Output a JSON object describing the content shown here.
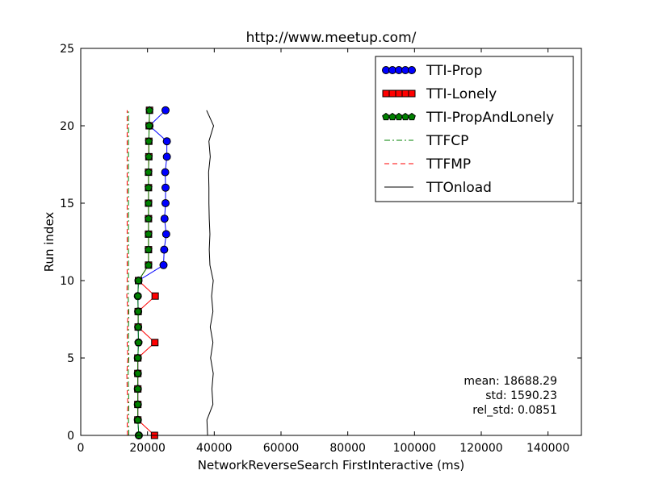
{
  "chart_data": {
    "type": "line",
    "title": "http://www.meetup.com/",
    "xlabel": "NetworkReverseSearch FirstInteractive (ms)",
    "ylabel": "Run index",
    "xlim": [
      0,
      150000
    ],
    "ylim": [
      0,
      25
    ],
    "xticks": [
      0,
      20000,
      40000,
      60000,
      80000,
      100000,
      120000,
      140000
    ],
    "yticks": [
      0,
      5,
      10,
      15,
      20,
      25
    ],
    "grid": false,
    "legend_position": "top-right",
    "series": [
      {
        "name": "TTI-Prop",
        "style": "line-markers",
        "marker": "circle",
        "color": "#0000ff",
        "points": [
          [
            17400,
            0
          ],
          [
            17100,
            1
          ],
          [
            17100,
            2
          ],
          [
            17100,
            3
          ],
          [
            17100,
            4
          ],
          [
            17100,
            5
          ],
          [
            17300,
            6
          ],
          [
            17200,
            7
          ],
          [
            17200,
            8
          ],
          [
            17100,
            9
          ],
          [
            17300,
            10
          ],
          [
            24800,
            11
          ],
          [
            25000,
            12
          ],
          [
            25600,
            13
          ],
          [
            25100,
            14
          ],
          [
            25400,
            15
          ],
          [
            25400,
            16
          ],
          [
            25300,
            17
          ],
          [
            25800,
            18
          ],
          [
            25800,
            19
          ],
          [
            20600,
            20
          ],
          [
            25400,
            21
          ]
        ]
      },
      {
        "name": "TTI-Lonely",
        "style": "line-markers",
        "marker": "square",
        "color": "#ff0000",
        "points": [
          [
            22100,
            0
          ],
          [
            17100,
            1
          ],
          [
            17100,
            2
          ],
          [
            17100,
            3
          ],
          [
            17100,
            4
          ],
          [
            17100,
            5
          ],
          [
            22200,
            6
          ],
          [
            17200,
            7
          ],
          [
            17200,
            8
          ],
          [
            22300,
            9
          ],
          [
            17300,
            10
          ],
          [
            20300,
            11
          ],
          [
            20300,
            12
          ],
          [
            20300,
            13
          ],
          [
            20300,
            14
          ],
          [
            20300,
            15
          ],
          [
            20300,
            16
          ],
          [
            20300,
            17
          ],
          [
            20400,
            18
          ],
          [
            20400,
            19
          ],
          [
            20500,
            20
          ],
          [
            20600,
            21
          ]
        ]
      },
      {
        "name": "TTI-PropAndLonely",
        "style": "line-markers",
        "marker": "pentagon",
        "color": "#008000",
        "points": [
          [
            17400,
            0
          ],
          [
            17100,
            1
          ],
          [
            17100,
            2
          ],
          [
            17100,
            3
          ],
          [
            17100,
            4
          ],
          [
            17100,
            5
          ],
          [
            17300,
            6
          ],
          [
            17200,
            7
          ],
          [
            17200,
            8
          ],
          [
            17100,
            9
          ],
          [
            17300,
            10
          ],
          [
            20300,
            11
          ],
          [
            20300,
            12
          ],
          [
            20300,
            13
          ],
          [
            20300,
            14
          ],
          [
            20300,
            15
          ],
          [
            20300,
            16
          ],
          [
            20300,
            17
          ],
          [
            20400,
            18
          ],
          [
            20400,
            19
          ],
          [
            20500,
            20
          ],
          [
            20600,
            21
          ]
        ]
      },
      {
        "name": "TTFCP",
        "style": "dash-dot",
        "color": "#008000",
        "points": [
          [
            14400,
            0
          ],
          [
            14300,
            1
          ],
          [
            14400,
            2
          ],
          [
            14300,
            3
          ],
          [
            14200,
            4
          ],
          [
            14400,
            5
          ],
          [
            14300,
            6
          ],
          [
            14300,
            7
          ],
          [
            14400,
            8
          ],
          [
            14200,
            9
          ],
          [
            14300,
            10
          ],
          [
            14300,
            11
          ],
          [
            14300,
            12
          ],
          [
            14300,
            13
          ],
          [
            14300,
            14
          ],
          [
            14300,
            15
          ],
          [
            14300,
            16
          ],
          [
            14300,
            17
          ],
          [
            14300,
            18
          ],
          [
            14300,
            19
          ],
          [
            14300,
            20
          ],
          [
            14300,
            21
          ]
        ]
      },
      {
        "name": "TTFMP",
        "style": "dashed",
        "color": "#ff0000",
        "points": [
          [
            14000,
            0
          ],
          [
            13900,
            1
          ],
          [
            14100,
            2
          ],
          [
            13900,
            3
          ],
          [
            13800,
            4
          ],
          [
            14100,
            5
          ],
          [
            13900,
            6
          ],
          [
            14000,
            7
          ],
          [
            14100,
            8
          ],
          [
            13800,
            9
          ],
          [
            13900,
            10
          ],
          [
            13900,
            11
          ],
          [
            13900,
            12
          ],
          [
            13900,
            13
          ],
          [
            13900,
            14
          ],
          [
            13900,
            15
          ],
          [
            13900,
            16
          ],
          [
            13900,
            17
          ],
          [
            13900,
            18
          ],
          [
            13900,
            19
          ],
          [
            13900,
            20
          ],
          [
            13900,
            21
          ]
        ]
      },
      {
        "name": "TTOnload",
        "style": "solid",
        "color": "#000000",
        "points": [
          [
            38000,
            0
          ],
          [
            37800,
            1
          ],
          [
            39600,
            2
          ],
          [
            39300,
            3
          ],
          [
            39700,
            4
          ],
          [
            38900,
            5
          ],
          [
            39600,
            6
          ],
          [
            38800,
            7
          ],
          [
            39600,
            8
          ],
          [
            39200,
            9
          ],
          [
            39700,
            10
          ],
          [
            38700,
            11
          ],
          [
            38500,
            12
          ],
          [
            38700,
            13
          ],
          [
            38500,
            14
          ],
          [
            38400,
            15
          ],
          [
            38400,
            16
          ],
          [
            38300,
            17
          ],
          [
            38800,
            18
          ],
          [
            38400,
            19
          ],
          [
            39800,
            20
          ],
          [
            37700,
            21
          ]
        ]
      }
    ],
    "annotations": [
      "mean: 18688.29",
      "std: 1590.23",
      "rel_std: 0.0851"
    ]
  }
}
